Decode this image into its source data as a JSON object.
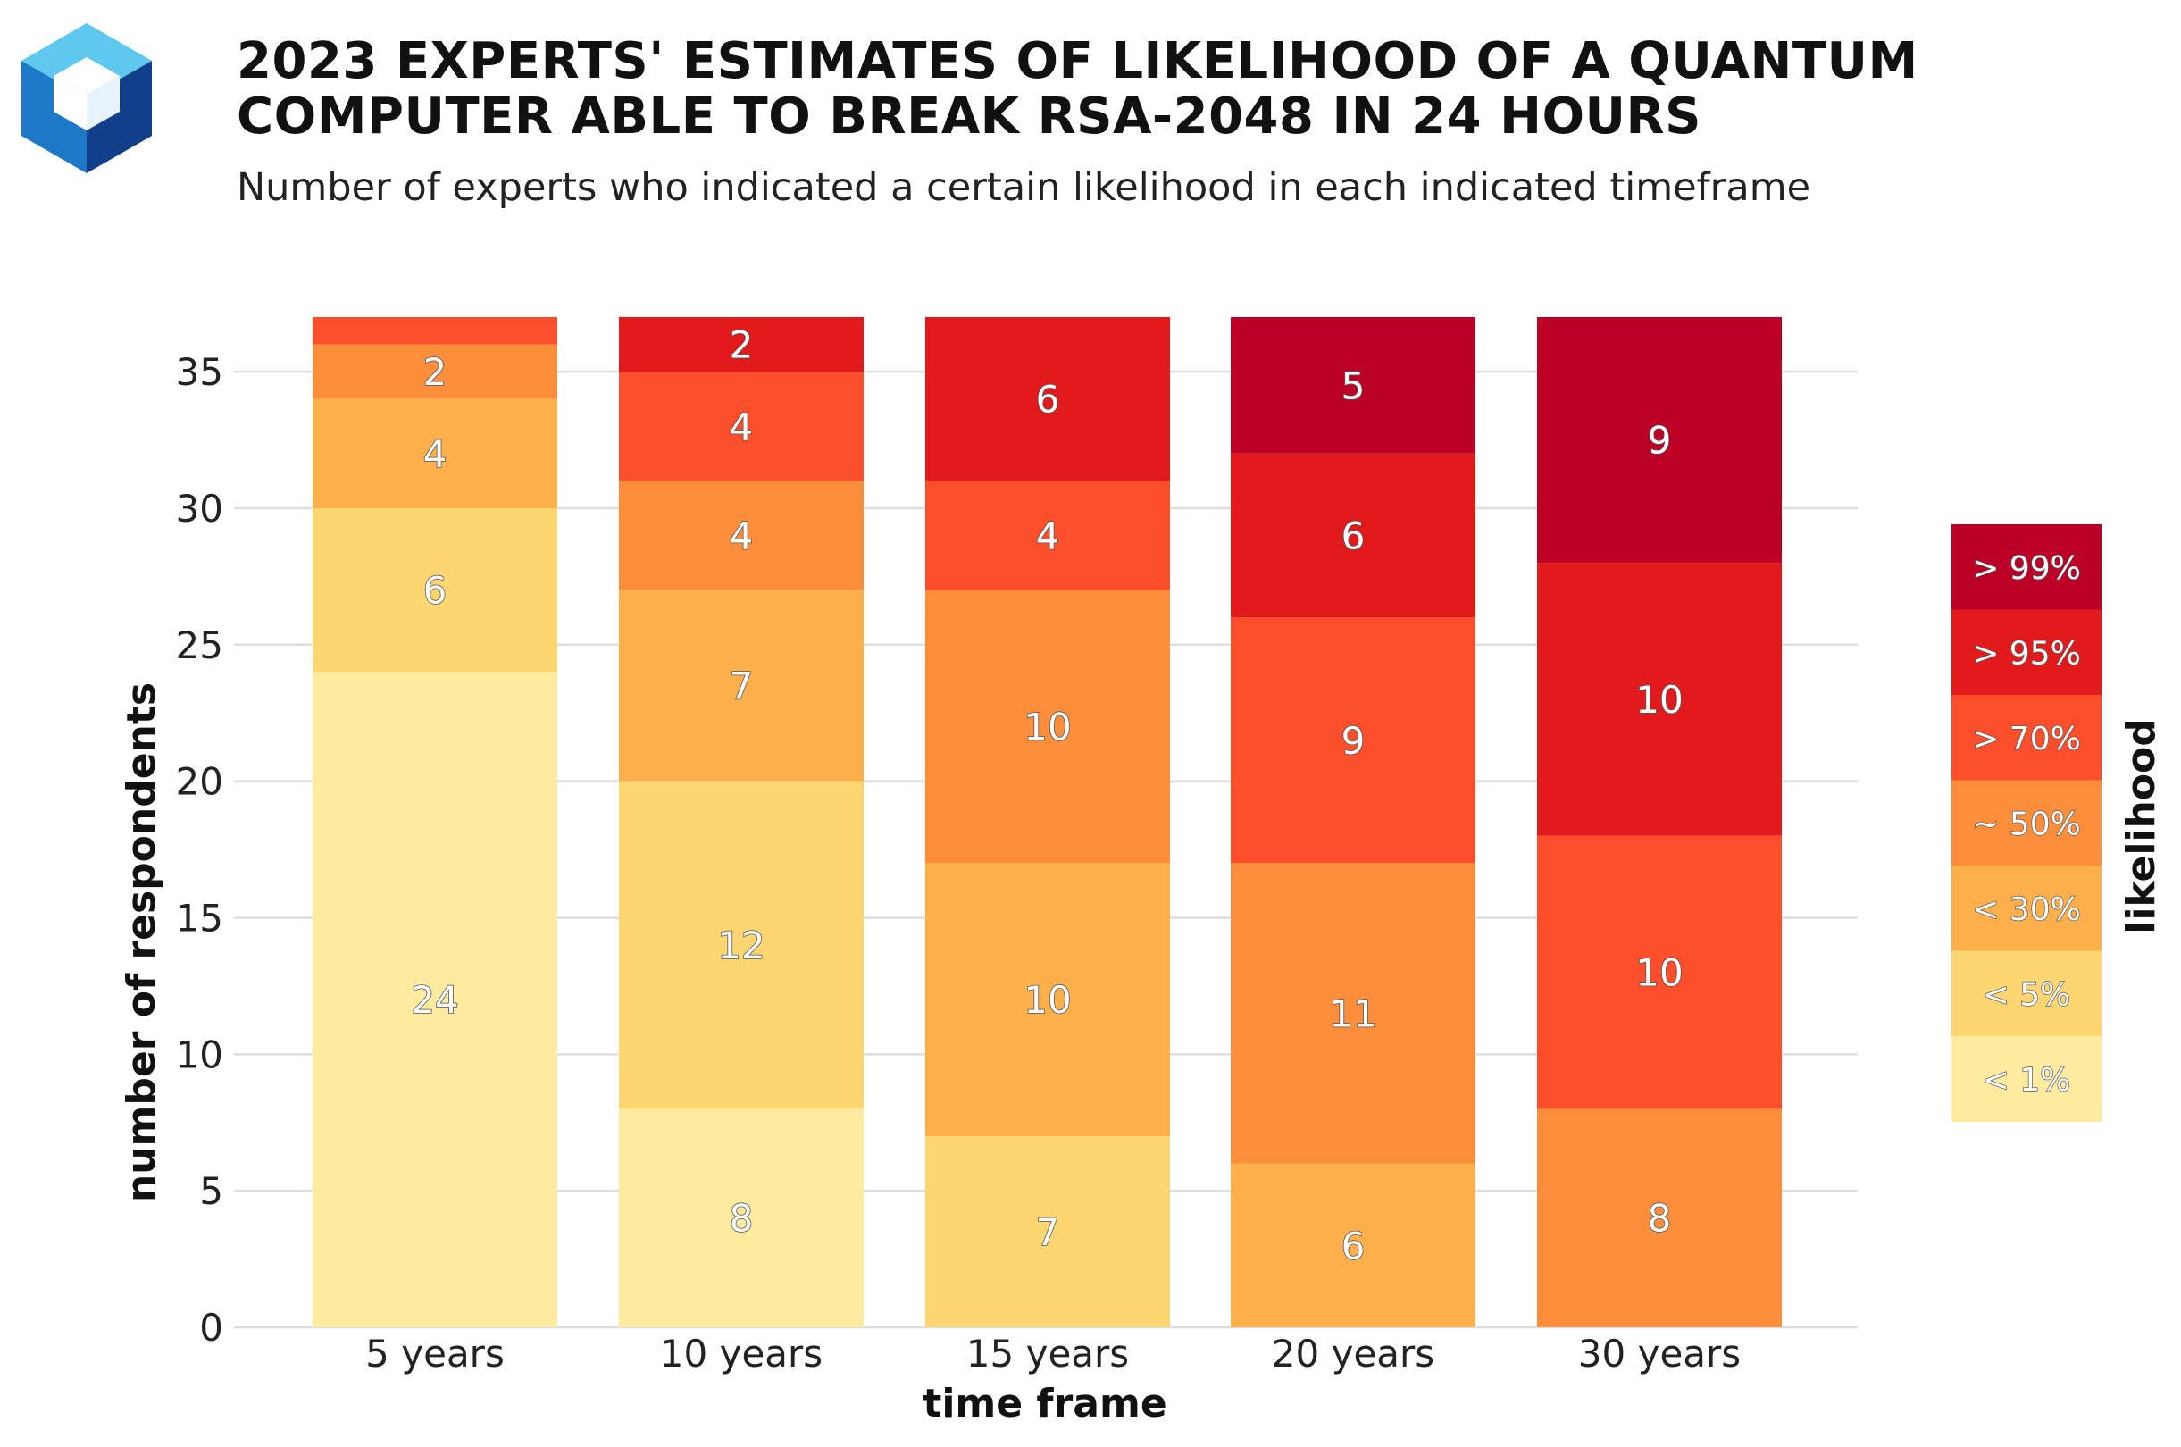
{
  "header": {
    "logo_icon": "cube-logo-icon",
    "title_line1": "2023 EXPERTS' ESTIMATES OF LIKELIHOOD OF A QUANTUM",
    "title_line2": "COMPUTER ABLE TO BREAK RSA-2048 IN 24 HOURS",
    "subtitle": "Number of experts who indicated a certain likelihood in each indicated timeframe"
  },
  "chart_data": {
    "type": "bar",
    "stacked": true,
    "title": "2023 EXPERTS' ESTIMATES OF LIKELIHOOD OF A QUANTUM COMPUTER ABLE TO BREAK RSA-2048 IN 24 HOURS",
    "subtitle": "Number of experts who indicated a certain likelihood in each indicated timeframe",
    "xlabel": "time frame",
    "ylabel": "number of respondents",
    "categories": [
      "5 years",
      "10 years",
      "15 years",
      "20 years",
      "30 years"
    ],
    "ylim": [
      0,
      37
    ],
    "yticks": [
      0,
      5,
      10,
      15,
      20,
      25,
      30,
      35
    ],
    "grid": "horizontal",
    "legend_title": "likelihood",
    "legend_position": "right",
    "series": [
      {
        "name": "< 1%",
        "color": "#FEEB9F",
        "values": [
          24,
          8,
          0,
          0,
          0
        ]
      },
      {
        "name": "< 5%",
        "color": "#FDD672",
        "values": [
          6,
          12,
          7,
          0,
          0
        ]
      },
      {
        "name": "< 30%",
        "color": "#FDAF4B",
        "values": [
          4,
          7,
          10,
          6,
          0
        ]
      },
      {
        "name": "~ 50%",
        "color": "#FC8E3B",
        "values": [
          2,
          4,
          10,
          11,
          8
        ]
      },
      {
        "name": "> 70%",
        "color": "#FC4E2A",
        "values": [
          1,
          4,
          4,
          9,
          10
        ]
      },
      {
        "name": "> 95%",
        "color": "#E31A1C",
        "values": [
          0,
          2,
          6,
          6,
          10
        ]
      },
      {
        "name": "> 99%",
        "color": "#BD0026",
        "values": [
          0,
          0,
          0,
          5,
          9
        ]
      }
    ],
    "data_labels_shown_min": 2
  }
}
